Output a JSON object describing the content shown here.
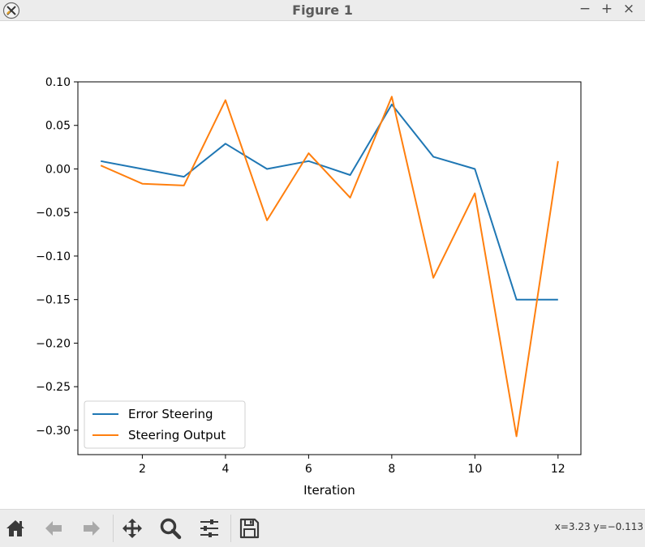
{
  "window": {
    "title": "Figure 1",
    "controls": {
      "minimize": "−",
      "maximize": "+",
      "close": "×"
    }
  },
  "toolbar": {
    "buttons": [
      "home-icon",
      "back-arrow-icon",
      "forward-arrow-icon",
      "pan-icon",
      "zoom-icon",
      "configure-subplots-icon",
      "save-icon"
    ],
    "coords": "x=3.23 y=−0.113"
  },
  "chart_data": {
    "type": "line",
    "xlabel": "Iteration",
    "ylabel": "",
    "title": "",
    "xlim": [
      0.45,
      12.55
    ],
    "ylim": [
      -0.328,
      0.1
    ],
    "xticks": [
      2,
      4,
      6,
      8,
      10,
      12
    ],
    "xtick_labels": [
      "2",
      "4",
      "6",
      "8",
      "10",
      "12"
    ],
    "yticks": [
      0.1,
      0.05,
      0.0,
      -0.05,
      -0.1,
      -0.15,
      -0.2,
      -0.25,
      -0.3
    ],
    "ytick_labels": [
      "0.10",
      "0.05",
      "0.00",
      "−0.05",
      "−0.10",
      "−0.15",
      "−0.20",
      "−0.25",
      "−0.30"
    ],
    "grid": false,
    "legend_position": "lower-left",
    "x": [
      1,
      2,
      3,
      4,
      5,
      6,
      7,
      8,
      9,
      10,
      11,
      12
    ],
    "series": [
      {
        "name": "Error Steering",
        "color": "#1f77b4",
        "values": [
          0.009,
          0.0,
          -0.009,
          0.029,
          0.0,
          0.009,
          -0.007,
          0.074,
          0.014,
          0.0,
          -0.15,
          -0.15
        ]
      },
      {
        "name": "Steering Output",
        "color": "#ff7f0e",
        "values": [
          0.004,
          -0.017,
          -0.019,
          0.079,
          -0.059,
          0.018,
          -0.033,
          0.083,
          -0.125,
          -0.028,
          -0.307,
          0.009
        ]
      }
    ]
  }
}
